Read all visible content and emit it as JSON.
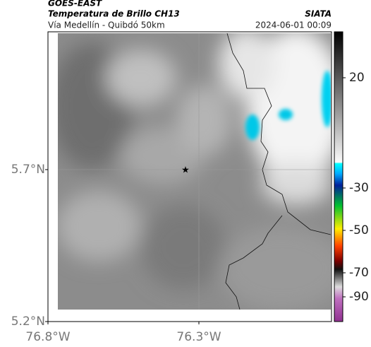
{
  "header": {
    "satellite": "GOES-EAST",
    "product": "Temperatura de Brillo CH13",
    "source": "SIATA",
    "region": "Vía Medellín - Quibdó 50km",
    "datetime": "2024-06-01 00:09"
  },
  "map": {
    "lat_labels": [
      "5.7°N",
      "5.2°N"
    ],
    "lon_labels": [
      "76.8°W",
      "76.3°W"
    ]
  },
  "colorbar": {
    "ticks": [
      20,
      -30,
      -50,
      -70,
      -90
    ]
  }
}
